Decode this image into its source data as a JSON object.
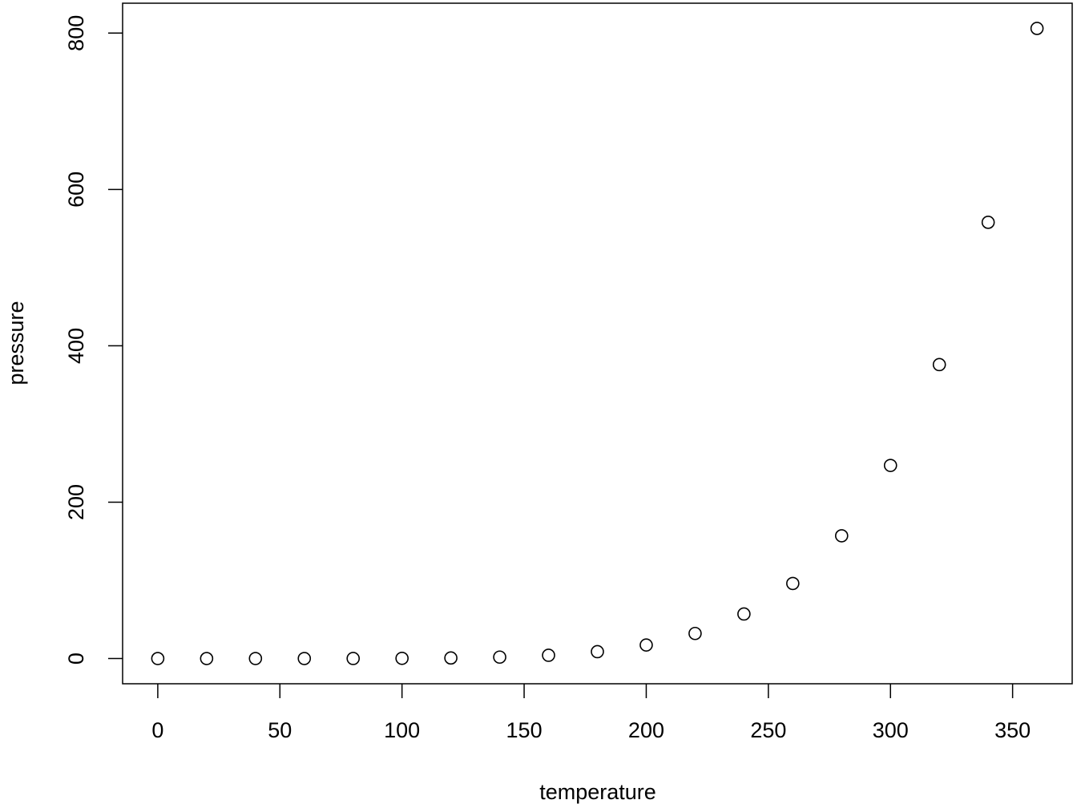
{
  "chart_data": {
    "type": "scatter",
    "x_label": "temperature",
    "y_label": "pressure",
    "x": [
      0,
      20,
      40,
      60,
      80,
      100,
      120,
      140,
      160,
      180,
      200,
      220,
      240,
      260,
      280,
      300,
      320,
      340,
      360
    ],
    "values": [
      0.0002,
      0.0012,
      0.006,
      0.03,
      0.09,
      0.27,
      0.75,
      1.85,
      4.2,
      8.8,
      17.3,
      32.1,
      57,
      96,
      157,
      247,
      376,
      558,
      806
    ],
    "color": "#000000",
    "xlim": [
      -14.4,
      374.4
    ],
    "xticks": [
      0,
      50,
      100,
      150,
      200,
      250,
      300,
      350
    ],
    "ylim": [
      -32.24,
      838.24
    ],
    "yticks": [
      0,
      200,
      400,
      600,
      800
    ],
    "grid": false
  }
}
